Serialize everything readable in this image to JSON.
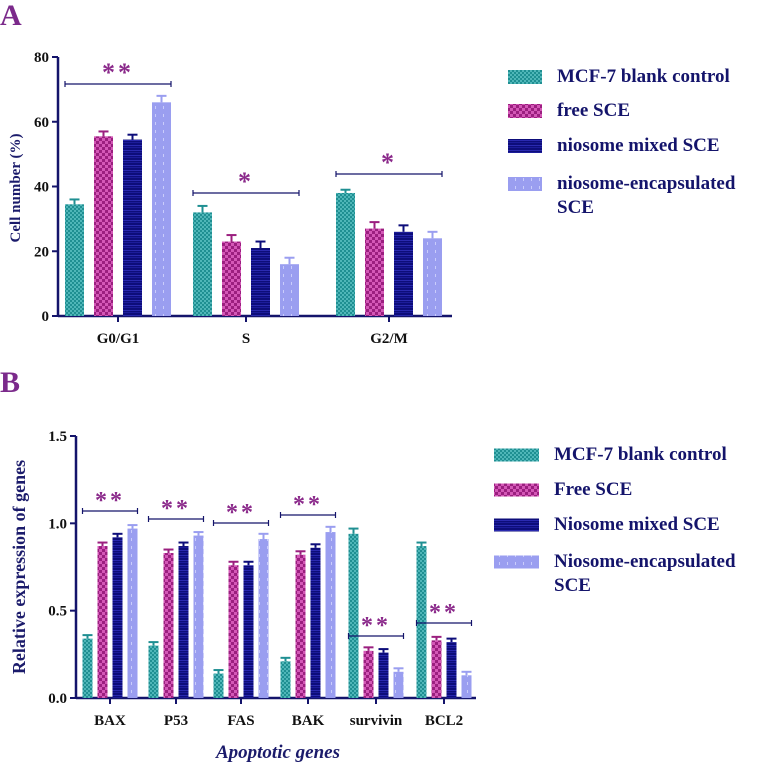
{
  "colors": {
    "axis": "#14146b",
    "star": "#8b2a8b",
    "series": [
      "#1f8f92",
      "#9b1f7f",
      "#0d0d7a",
      "#9a9ef0"
    ],
    "errorbar": [
      "#1f8f92",
      "#9b1f7f",
      "#0d0d7a",
      "#9a9ef0"
    ]
  },
  "chart_data": [
    {
      "type": "bar",
      "panel": "A",
      "ylabel": "Cell number (%)",
      "xlabel": "",
      "ylim": [
        0,
        80
      ],
      "yticks": [
        "0",
        "20",
        "40",
        "60",
        "80"
      ],
      "yticks_values": [
        0,
        20,
        40,
        60,
        80
      ],
      "categories": [
        "G0/G1",
        "S",
        "G2/M"
      ],
      "series": [
        {
          "name": "MCF-7 blank control",
          "values": [
            34.5,
            32,
            38
          ],
          "errors": [
            1.5,
            2,
            1
          ]
        },
        {
          "name": "free SCE",
          "values": [
            55.5,
            23,
            27
          ],
          "errors": [
            1.5,
            2,
            2
          ]
        },
        {
          "name": "niosome mixed SCE",
          "values": [
            54.5,
            21,
            26
          ],
          "errors": [
            1.5,
            2,
            2
          ]
        },
        {
          "name": "niosome-encapsulated SCE",
          "values": [
            66,
            16,
            24
          ],
          "errors": [
            2,
            2,
            2
          ]
        }
      ],
      "legend_lines": [
        [
          "MCF-7 blank control"
        ],
        [
          "free SCE"
        ],
        [
          "niosome mixed SCE"
        ],
        [
          "niosome-encapsulated",
          "SCE"
        ]
      ],
      "significance": [
        "**",
        "*",
        "*"
      ],
      "legend": "right",
      "grid": false
    },
    {
      "type": "bar",
      "panel": "B",
      "ylabel": "Relative expression of genes",
      "xlabel": "Apoptotic genes",
      "ylim": [
        0,
        1.5
      ],
      "yticks": [
        "0.0",
        "0.5",
        "1.0",
        "1.5"
      ],
      "yticks_values": [
        0,
        0.5,
        1.0,
        1.5
      ],
      "categories": [
        "BAX",
        "P53",
        "FAS",
        "BAK",
        "survivin",
        "BCL2"
      ],
      "series": [
        {
          "name": "MCF-7 blank control",
          "values": [
            0.34,
            0.3,
            0.14,
            0.21,
            0.94,
            0.87
          ],
          "errors": [
            0.02,
            0.02,
            0.02,
            0.02,
            0.03,
            0.02
          ]
        },
        {
          "name": "Free SCE",
          "values": [
            0.87,
            0.83,
            0.76,
            0.82,
            0.27,
            0.33
          ],
          "errors": [
            0.02,
            0.02,
            0.02,
            0.02,
            0.02,
            0.02
          ]
        },
        {
          "name": "Niosome mixed SCE",
          "values": [
            0.92,
            0.87,
            0.76,
            0.86,
            0.26,
            0.32
          ],
          "errors": [
            0.02,
            0.02,
            0.02,
            0.02,
            0.02,
            0.02
          ]
        },
        {
          "name": "Niosome-encapsulated SCE",
          "values": [
            0.97,
            0.93,
            0.91,
            0.95,
            0.15,
            0.13
          ],
          "errors": [
            0.02,
            0.02,
            0.03,
            0.03,
            0.02,
            0.02
          ]
        }
      ],
      "legend_lines": [
        [
          "MCF-7 blank control"
        ],
        [
          "Free SCE"
        ],
        [
          "Niosome mixed SCE"
        ],
        [
          "Niosome-encapsulated",
          "SCE"
        ]
      ],
      "significance": [
        "**",
        "**",
        "**",
        "**",
        "**",
        "**"
      ],
      "legend": "right",
      "grid": false
    }
  ]
}
